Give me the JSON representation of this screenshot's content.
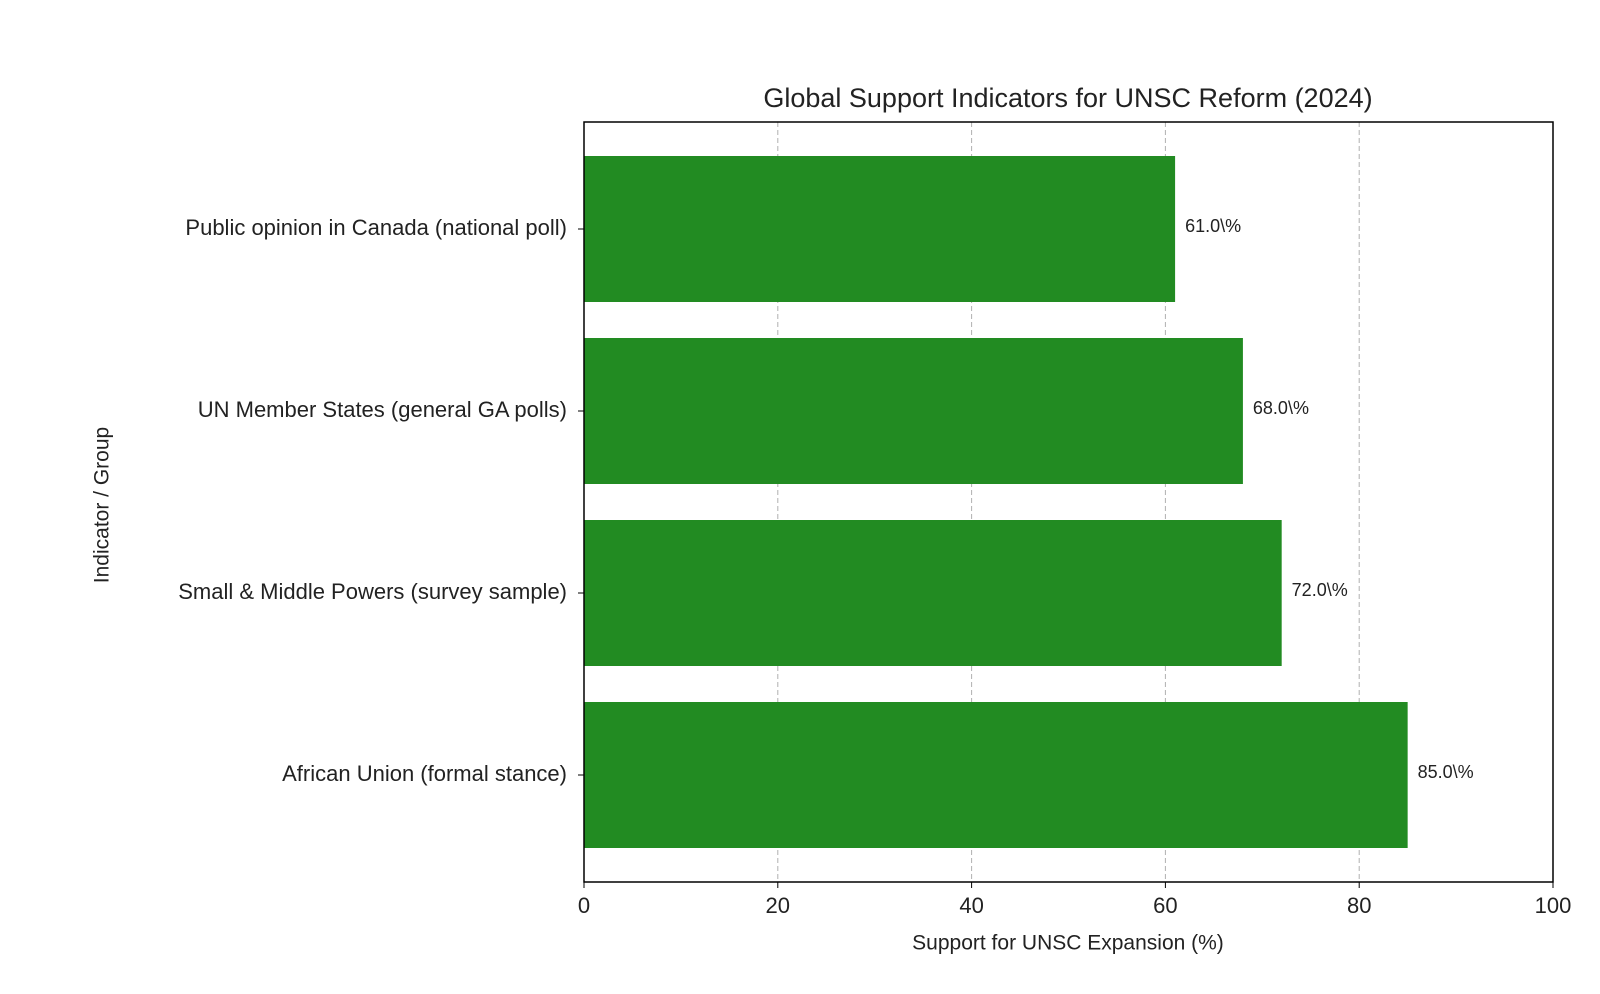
{
  "chart_data": {
    "type": "barh",
    "title": "Global Support Indicators for UNSC Reform (2024)",
    "x_label": "Support for UNSC Expansion (%)",
    "y_label": "Indicator / Group",
    "categories": [
      "Public opinion in Canada (national poll)",
      "UN Member States (general GA polls)",
      "Small & Middle Powers (survey sample)",
      "African Union (formal stance)"
    ],
    "values": [
      61,
      68,
      72,
      85
    ],
    "value_labels": [
      "61.0\\%",
      "68.0\\%",
      "72.0\\%",
      "85.0\\%"
    ],
    "color": "#228b22",
    "xlim": [
      0,
      100
    ],
    "xticks": [
      0,
      20,
      40,
      60,
      80,
      100
    ],
    "grid": true
  }
}
